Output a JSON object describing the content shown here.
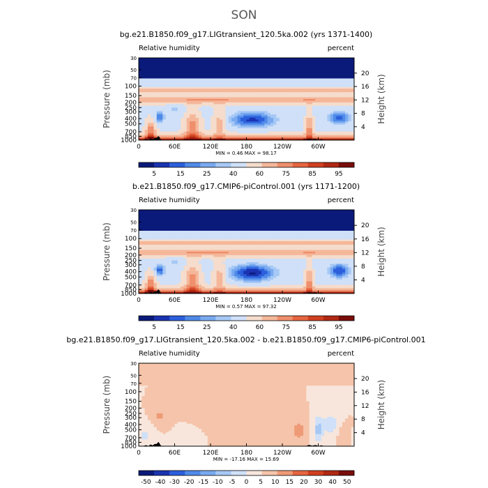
{
  "figure": {
    "season_title": "SON"
  },
  "palettes": {
    "humidity": [
      "#0a1a7a",
      "#1a33b0",
      "#2b5fdc",
      "#4f8ae8",
      "#79aaf0",
      "#a6c8f5",
      "#cfe0f8",
      "#f5dccc",
      "#f5b79a",
      "#ef8f6c",
      "#e6653f",
      "#d04020",
      "#b02813",
      "#7a0d0a"
    ],
    "difference": [
      "#0a1a7a",
      "#1a33b0",
      "#2b5fdc",
      "#4f8ae8",
      "#79aaf0",
      "#a6c8f5",
      "#cfe0f8",
      "#f8e6dc",
      "#f5c4aa",
      "#ef9a76",
      "#e6653f",
      "#d04020",
      "#b02813",
      "#7a0d0a"
    ],
    "terrain": "#000000"
  },
  "chart_data": [
    {
      "type": "heatmap",
      "title": "bg.e21.B1850.f09_g17.LIGtransient_120.5ka.002 (yrs 1371-1400)",
      "left_label": "Relative humidity",
      "right_label": "percent",
      "ylabel": "Pressure (mb)",
      "ylabel_right": "Height (km)",
      "x_ticks": [
        "0",
        "60E",
        "120E",
        "180",
        "120W",
        "60W"
      ],
      "x_tick_values": [
        0,
        60,
        120,
        180,
        240,
        300
      ],
      "xlim": [
        0,
        360
      ],
      "y_ticks": [
        "30",
        "50",
        "70",
        "100",
        "150",
        "200",
        "250",
        "300",
        "400",
        "500",
        "700",
        "850",
        "1000"
      ],
      "y_tick_values": [
        30,
        50,
        70,
        100,
        150,
        200,
        250,
        300,
        400,
        500,
        700,
        850,
        1000
      ],
      "ylim": [
        30,
        1000
      ],
      "height_ticks": [
        "20",
        "16",
        "12",
        "8",
        "4"
      ],
      "height_tick_values": [
        20,
        16,
        12,
        8,
        4
      ],
      "stats": "MIN =   0.46   MAX = 98.17",
      "min": 0.46,
      "max": 98.17,
      "colorbar_labels": [
        "5",
        "15",
        "25",
        "40",
        "60",
        "75",
        "85",
        "95"
      ],
      "colorbar_levels": [
        5,
        10,
        15,
        20,
        25,
        30,
        40,
        50,
        60,
        70,
        75,
        80,
        85,
        90,
        95
      ],
      "palette": "humidity",
      "field": "rh_lig"
    },
    {
      "type": "heatmap",
      "title": "b.e21.B1850.f09_g17.CMIP6-piControl.001 (yrs 1171-1200)",
      "left_label": "Relative humidity",
      "right_label": "percent",
      "ylabel": "Pressure (mb)",
      "ylabel_right": "Height (km)",
      "x_ticks": [
        "0",
        "60E",
        "120E",
        "180",
        "120W",
        "60W"
      ],
      "x_tick_values": [
        0,
        60,
        120,
        180,
        240,
        300
      ],
      "xlim": [
        0,
        360
      ],
      "y_ticks": [
        "30",
        "50",
        "70",
        "100",
        "150",
        "200",
        "250",
        "300",
        "400",
        "500",
        "700",
        "850",
        "1000"
      ],
      "y_tick_values": [
        30,
        50,
        70,
        100,
        150,
        200,
        250,
        300,
        400,
        500,
        700,
        850,
        1000
      ],
      "ylim": [
        30,
        1000
      ],
      "height_ticks": [
        "20",
        "16",
        "12",
        "8",
        "4"
      ],
      "height_tick_values": [
        20,
        16,
        12,
        8,
        4
      ],
      "stats": "MIN =   0.57   MAX = 97.32",
      "min": 0.57,
      "max": 97.32,
      "colorbar_labels": [
        "5",
        "15",
        "25",
        "40",
        "60",
        "75",
        "85",
        "95"
      ],
      "colorbar_levels": [
        5,
        10,
        15,
        20,
        25,
        30,
        40,
        50,
        60,
        70,
        75,
        80,
        85,
        90,
        95
      ],
      "palette": "humidity",
      "field": "rh_pi"
    },
    {
      "type": "heatmap",
      "title": "bg.e21.B1850.f09_g17.LIGtransient_120.5ka.002 - b.e21.B1850.f09_g17.CMIP6-piControl.001",
      "left_label": "Relative humidity",
      "right_label": "percent",
      "ylabel": "Pressure (mb)",
      "ylabel_right": "Height (km)",
      "x_ticks": [
        "0",
        "60E",
        "120E",
        "180",
        "120W",
        "60W"
      ],
      "x_tick_values": [
        0,
        60,
        120,
        180,
        240,
        300
      ],
      "xlim": [
        0,
        360
      ],
      "y_ticks": [
        "30",
        "50",
        "70",
        "100",
        "150",
        "200",
        "250",
        "300",
        "400",
        "500",
        "700",
        "850",
        "1000"
      ],
      "y_tick_values": [
        30,
        50,
        70,
        100,
        150,
        200,
        250,
        300,
        400,
        500,
        700,
        850,
        1000
      ],
      "ylim": [
        30,
        1000
      ],
      "height_ticks": [
        "20",
        "16",
        "12",
        "8",
        "4"
      ],
      "height_tick_values": [
        20,
        16,
        12,
        8,
        4
      ],
      "stats": "MIN = -17.16   MAX = 15.69",
      "min": -17.16,
      "max": 15.69,
      "colorbar_labels": [
        "-50",
        "-40",
        "-30",
        "-20",
        "-15",
        "-10",
        "-5",
        "0",
        "5",
        "10",
        "15",
        "20",
        "30",
        "40",
        "50"
      ],
      "colorbar_levels": [
        -50,
        -40,
        -30,
        -20,
        -15,
        -10,
        -5,
        0,
        5,
        10,
        15,
        20,
        30,
        40,
        50
      ],
      "palette": "difference",
      "field": "rh_diff"
    }
  ]
}
